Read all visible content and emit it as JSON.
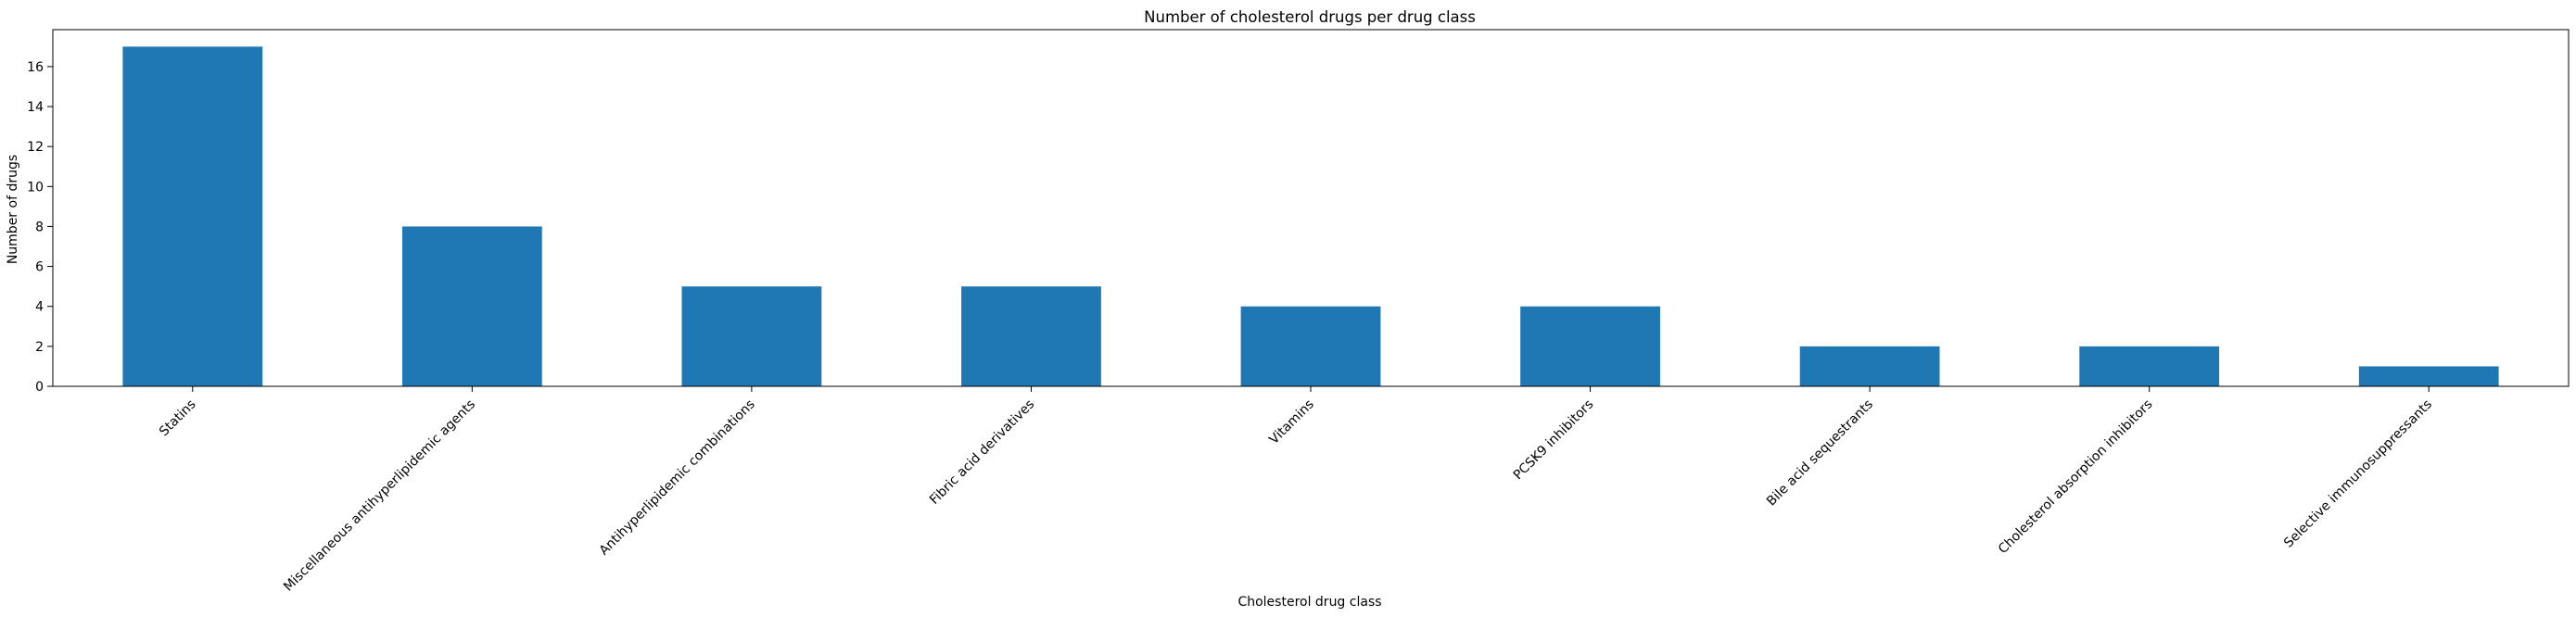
{
  "chart_data": {
    "type": "bar",
    "title": "Number of cholesterol drugs per drug class",
    "xlabel": "Cholesterol drug class",
    "ylabel": "Number of drugs",
    "categories": [
      "Statins",
      "Miscellaneous antihyperlipidemic agents",
      "Antihyperlipidemic combinations",
      "Fibric acid derivatives",
      "Vitamins",
      "PCSK9 inhibitors",
      "Bile acid sequestrants",
      "Cholesterol absorption inhibitors",
      "Selective immunosuppressants"
    ],
    "values": [
      17,
      8,
      5,
      5,
      4,
      4,
      2,
      2,
      1
    ],
    "ylim": [
      0,
      17.85
    ],
    "yticks": [
      0,
      2,
      4,
      6,
      8,
      10,
      12,
      14,
      16
    ],
    "bar_color": "#1f77b4",
    "grid": false,
    "legend": "none",
    "xtick_rotation_deg": 45
  }
}
